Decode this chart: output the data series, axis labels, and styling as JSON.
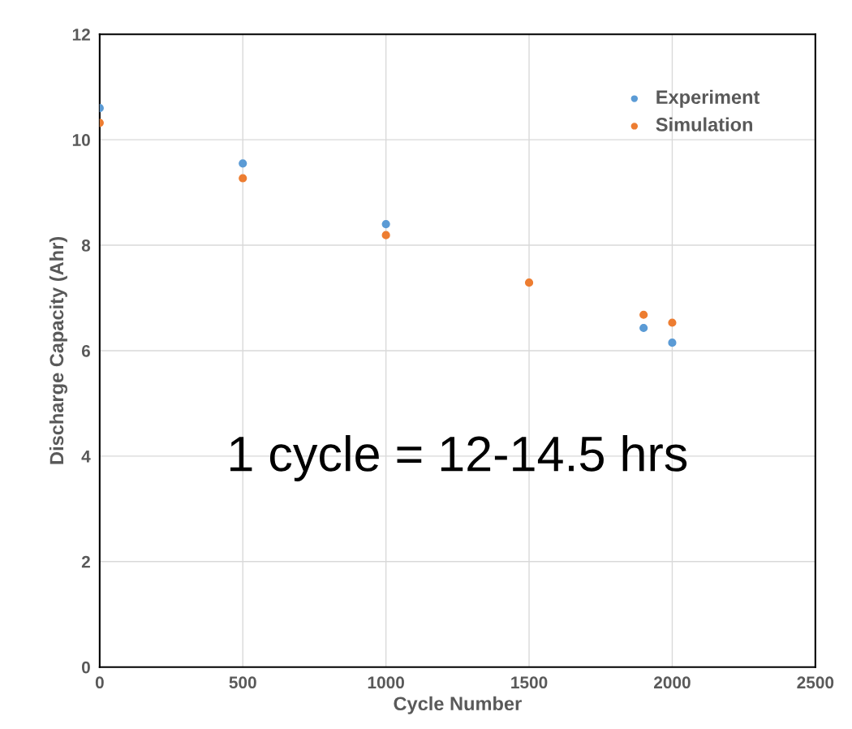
{
  "chart_data": {
    "type": "scatter",
    "xlabel": "Cycle Number",
    "ylabel": "Discharge Capacity (Ahr)",
    "x": [
      0,
      500,
      1000,
      1500,
      1900,
      2000
    ],
    "series": [
      {
        "name": "Experiment",
        "color": "#5b9bd5",
        "values": [
          10.6,
          9.55,
          8.4,
          null,
          6.43,
          6.15
        ]
      },
      {
        "name": "Simulation",
        "color": "#ed7d31",
        "values": [
          10.32,
          9.27,
          8.19,
          7.29,
          6.68,
          6.53
        ]
      }
    ],
    "xlim": [
      0,
      2500
    ],
    "xticks": [
      0,
      500,
      1000,
      1500,
      2000,
      2500
    ],
    "ylim": [
      0,
      12
    ],
    "yticks": [
      0,
      2,
      4,
      6,
      8,
      10,
      12
    ],
    "grid": true,
    "legend": "top right",
    "marker": "circle",
    "annotations": [
      "1 cycle = 12-14.5 hrs"
    ]
  }
}
